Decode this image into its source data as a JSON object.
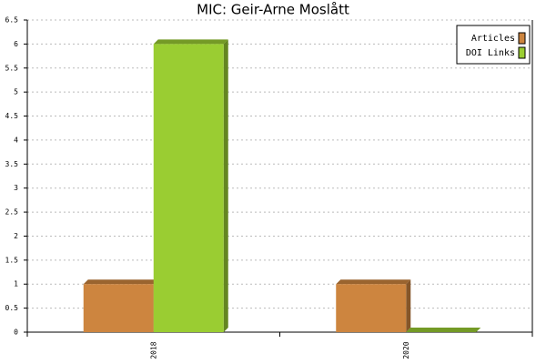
{
  "chart_data": {
    "type": "bar3d",
    "title": "MIC: Geir-Arne Moslått",
    "categories": [
      "2018",
      "2020"
    ],
    "series": [
      {
        "name": "Articles",
        "color": "#cd853f",
        "values": [
          1,
          1
        ]
      },
      {
        "name": "DOI Links",
        "color": "#9acd32",
        "values": [
          6,
          0
        ]
      }
    ],
    "ylim": [
      0,
      6.5
    ],
    "yticks": [
      0,
      0.5,
      1,
      1.5,
      2,
      2.5,
      3,
      3.5,
      4,
      4.5,
      5,
      5.5,
      6,
      6.5
    ],
    "grid": true,
    "legend": "top-right"
  }
}
